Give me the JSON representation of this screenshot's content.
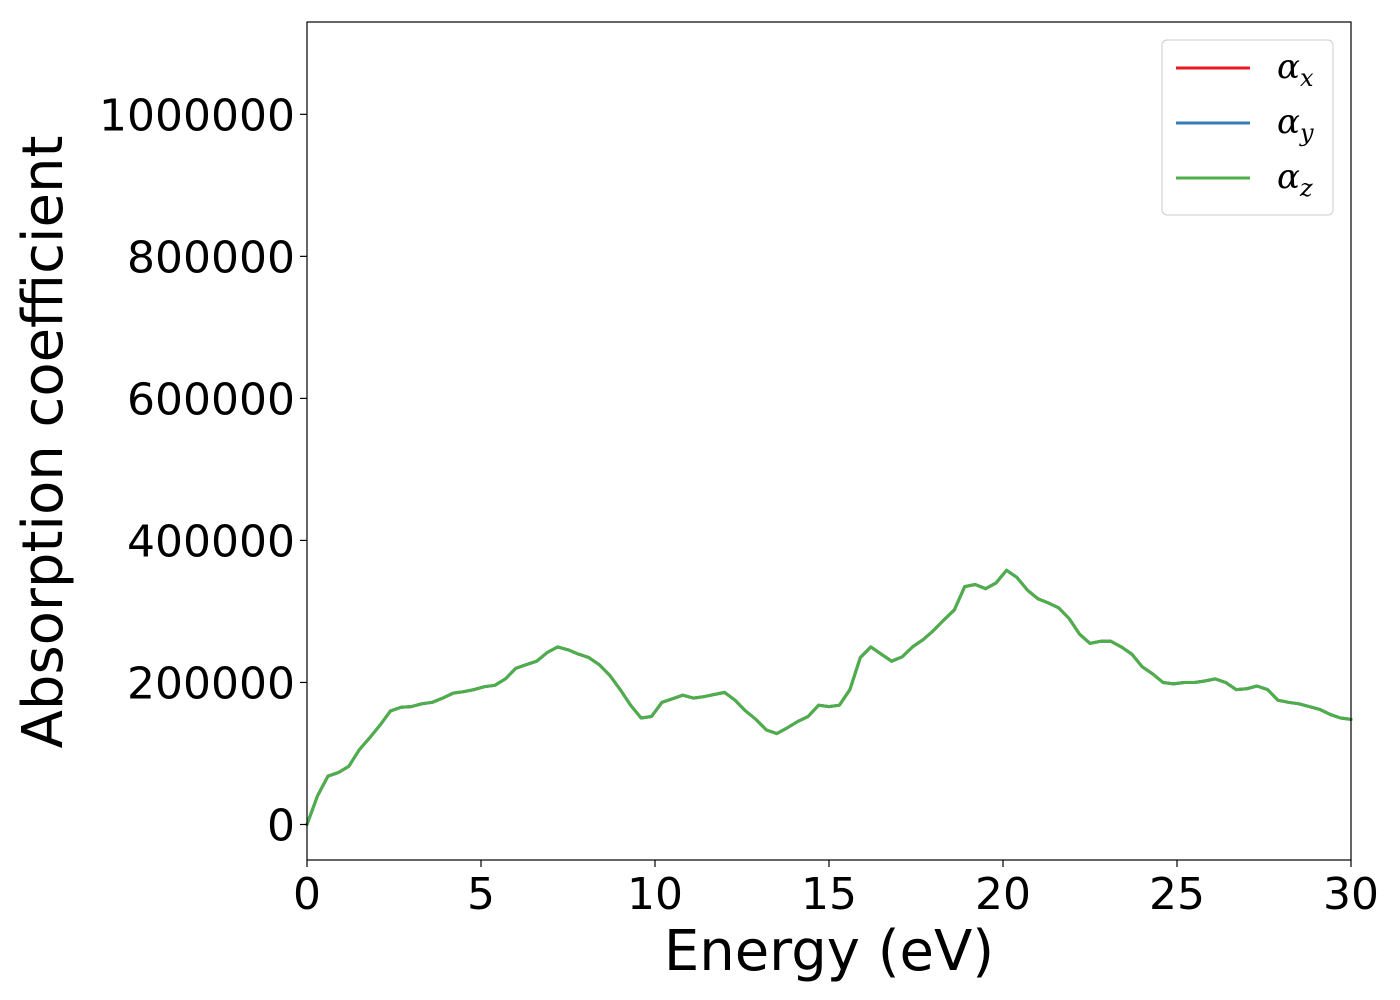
{
  "chart_data": {
    "type": "line",
    "xlabel": "Energy (eV)",
    "ylabel": "Absorption coefficient",
    "xlim": [
      0,
      30
    ],
    "ylim": [
      -50000,
      1130000
    ],
    "xticks": [
      0,
      5,
      10,
      15,
      20,
      25,
      30
    ],
    "xtick_labels": [
      "0",
      "5",
      "10",
      "15",
      "20",
      "25",
      "30"
    ],
    "yticks": [
      0,
      200000,
      400000,
      600000,
      800000,
      1000000
    ],
    "ytick_labels": [
      "0",
      "200000",
      "400000",
      "600000",
      "800000",
      "1000000"
    ],
    "grid": false,
    "legend_position": "top-right",
    "x": [
      0,
      0.3,
      0.6,
      0.9,
      1.2,
      1.5,
      1.8,
      2.1,
      2.4,
      2.7,
      3.0,
      3.3,
      3.6,
      3.9,
      4.2,
      4.5,
      4.8,
      5.1,
      5.4,
      5.7,
      6.0,
      6.3,
      6.6,
      6.9,
      7.2,
      7.5,
      7.8,
      8.1,
      8.4,
      8.7,
      9.0,
      9.3,
      9.6,
      9.9,
      10.2,
      10.5,
      10.8,
      11.1,
      11.4,
      11.7,
      12.0,
      12.3,
      12.6,
      12.9,
      13.2,
      13.5,
      13.8,
      14.1,
      14.4,
      14.7,
      15.0,
      15.3,
      15.6,
      15.9,
      16.2,
      16.5,
      16.8,
      17.1,
      17.4,
      17.7,
      18.0,
      18.3,
      18.6,
      18.9,
      19.2,
      19.5,
      19.8,
      20.1,
      20.4,
      20.7,
      21.0,
      21.3,
      21.6,
      21.9,
      22.2,
      22.5,
      22.8,
      23.1,
      23.4,
      23.7,
      24.0,
      24.3,
      24.6,
      24.9,
      25.2,
      25.5,
      25.8,
      26.1,
      26.4,
      26.7,
      27.0,
      27.3,
      27.6,
      27.9,
      28.2,
      28.5,
      28.8,
      29.1,
      29.4,
      29.7,
      30.0
    ],
    "series": [
      {
        "name": "α_x",
        "label_main": "α",
        "label_sub": "x",
        "color": "#e41a1c",
        "values": [
          0,
          40000,
          68000,
          73000,
          82000,
          105000,
          122000,
          140000,
          160000,
          165000,
          166000,
          170000,
          172000,
          178000,
          185000,
          187000,
          190000,
          194000,
          196000,
          205000,
          220000,
          225000,
          230000,
          242000,
          250000,
          246000,
          240000,
          235000,
          225000,
          210000,
          190000,
          168000,
          150000,
          152000,
          172000,
          177000,
          182000,
          178000,
          180000,
          183000,
          186000,
          175000,
          160000,
          148000,
          133000,
          128000,
          136000,
          145000,
          152000,
          168000,
          166000,
          168000,
          190000,
          235000,
          250000,
          240000,
          230000,
          236000,
          250000,
          260000,
          273000,
          288000,
          302000,
          335000,
          338000,
          332000,
          340000,
          358000,
          348000,
          330000,
          318000,
          312000,
          305000,
          290000,
          268000,
          255000,
          258000,
          258000,
          250000,
          240000,
          222000,
          212000,
          200000,
          198000,
          200000,
          200000,
          202000,
          205000,
          200000,
          190000,
          191000,
          195000,
          190000,
          175000,
          172000,
          170000,
          166000,
          162000,
          155000,
          150000,
          148000
        ]
      },
      {
        "name": "α_y",
        "label_main": "α",
        "label_sub": "y",
        "color": "#377eb8",
        "values": [
          0,
          40000,
          68000,
          73000,
          82000,
          105000,
          122000,
          140000,
          160000,
          165000,
          166000,
          170000,
          172000,
          178000,
          185000,
          187000,
          190000,
          194000,
          196000,
          205000,
          220000,
          225000,
          230000,
          242000,
          250000,
          246000,
          240000,
          235000,
          225000,
          210000,
          190000,
          168000,
          150000,
          152000,
          172000,
          177000,
          182000,
          178000,
          180000,
          183000,
          186000,
          175000,
          160000,
          148000,
          133000,
          128000,
          136000,
          145000,
          152000,
          168000,
          166000,
          168000,
          190000,
          235000,
          250000,
          240000,
          230000,
          236000,
          250000,
          260000,
          273000,
          288000,
          302000,
          335000,
          338000,
          332000,
          340000,
          358000,
          348000,
          330000,
          318000,
          312000,
          305000,
          290000,
          268000,
          255000,
          258000,
          258000,
          250000,
          240000,
          222000,
          212000,
          200000,
          198000,
          200000,
          200000,
          202000,
          205000,
          200000,
          190000,
          191000,
          195000,
          190000,
          175000,
          172000,
          170000,
          166000,
          162000,
          155000,
          150000,
          148000
        ]
      },
      {
        "name": "α_z",
        "label_main": "α",
        "label_sub": "z",
        "color": "#4daf4a",
        "values": [
          0,
          40000,
          68000,
          73000,
          82000,
          105000,
          122000,
          140000,
          160000,
          165000,
          166000,
          170000,
          172000,
          178000,
          185000,
          187000,
          190000,
          194000,
          196000,
          205000,
          220000,
          225000,
          230000,
          242000,
          250000,
          246000,
          240000,
          235000,
          225000,
          210000,
          190000,
          168000,
          150000,
          152000,
          172000,
          177000,
          182000,
          178000,
          180000,
          183000,
          186000,
          175000,
          160000,
          148000,
          133000,
          128000,
          136000,
          145000,
          152000,
          168000,
          166000,
          168000,
          190000,
          235000,
          250000,
          240000,
          230000,
          236000,
          250000,
          260000,
          273000,
          288000,
          302000,
          335000,
          338000,
          332000,
          340000,
          358000,
          348000,
          330000,
          318000,
          312000,
          305000,
          290000,
          268000,
          255000,
          258000,
          258000,
          250000,
          240000,
          222000,
          212000,
          200000,
          198000,
          200000,
          200000,
          202000,
          205000,
          200000,
          190000,
          191000,
          195000,
          190000,
          175000,
          172000,
          170000,
          166000,
          162000,
          155000,
          150000,
          148000
        ]
      }
    ]
  }
}
